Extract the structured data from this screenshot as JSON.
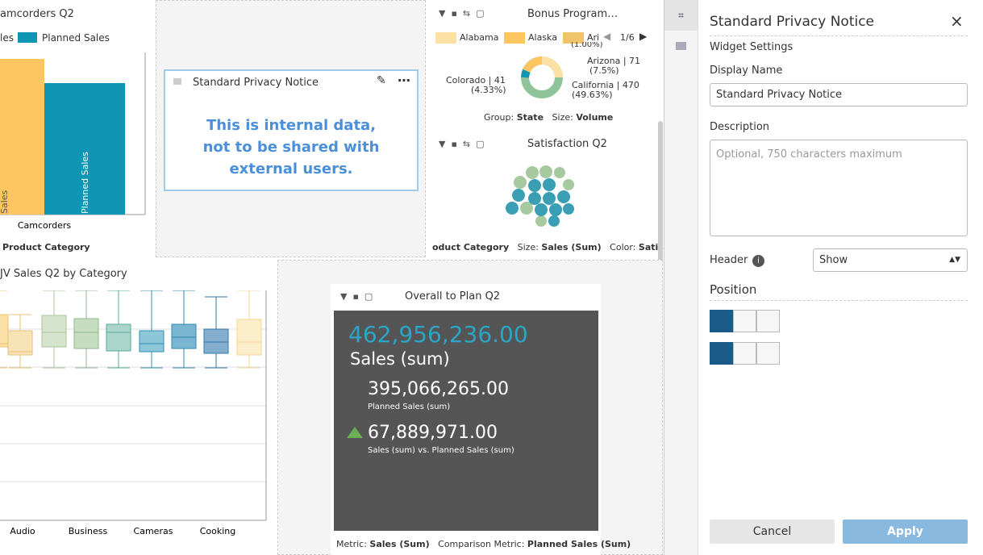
{
  "camcorders": {
    "title": "amcorders Q2",
    "legend": [
      "les",
      "Planned Sales"
    ],
    "bar_labels": [
      "Sales",
      "Planned Sales"
    ],
    "category": "Camcorders",
    "footer": "Product Category"
  },
  "privacy": {
    "title": "Standard Privacy Notice",
    "body": "This is internal data, not to be shared with external users."
  },
  "bonus": {
    "title": "Bonus Program…",
    "legend": [
      "Alabama",
      "Alaska",
      "Ari"
    ],
    "pager": "1/6",
    "labels": [
      "(1.00%)",
      "Arizona | 71",
      "(7.5%)",
      "California | 470",
      "(49.63%)",
      "Colorado | 41",
      "(4.33%)"
    ],
    "footer": [
      "Group:",
      "State",
      "Size:",
      "Volume"
    ]
  },
  "satisfaction": {
    "title": "Satisfaction Q2",
    "footer": [
      "oduct Category",
      "Size:",
      "Sales (Sum)",
      "Color:",
      "Satisfact"
    ]
  },
  "boxplot": {
    "title": "JV Sales Q2 by Category",
    "categories": [
      "Audio",
      "Business",
      "Cameras",
      "Cooking"
    ]
  },
  "overall": {
    "title": "Overall to Plan Q2",
    "main_value": "462,956,236.00",
    "main_label": "Sales (sum)",
    "planned_value": "395,066,265.00",
    "planned_label": "Planned Sales (sum)",
    "diff_value": "67,889,971.00",
    "diff_label": "Sales (sum) vs. Planned Sales (sum)",
    "footer": [
      "Metric:",
      "Sales (Sum)",
      "Comparison Metric:",
      "Planned Sales (Sum)"
    ]
  },
  "panel": {
    "title": "Standard Privacy Notice",
    "section": "Widget Settings",
    "display_name_label": "Display Name",
    "display_name": "Standard Privacy Notice",
    "description_label": "Description",
    "description_placeholder": "Optional, 750 characters maximum",
    "header_label": "Header",
    "header_value": "Show",
    "position_label": "Position",
    "cancel": "Cancel",
    "apply": "Apply"
  }
}
